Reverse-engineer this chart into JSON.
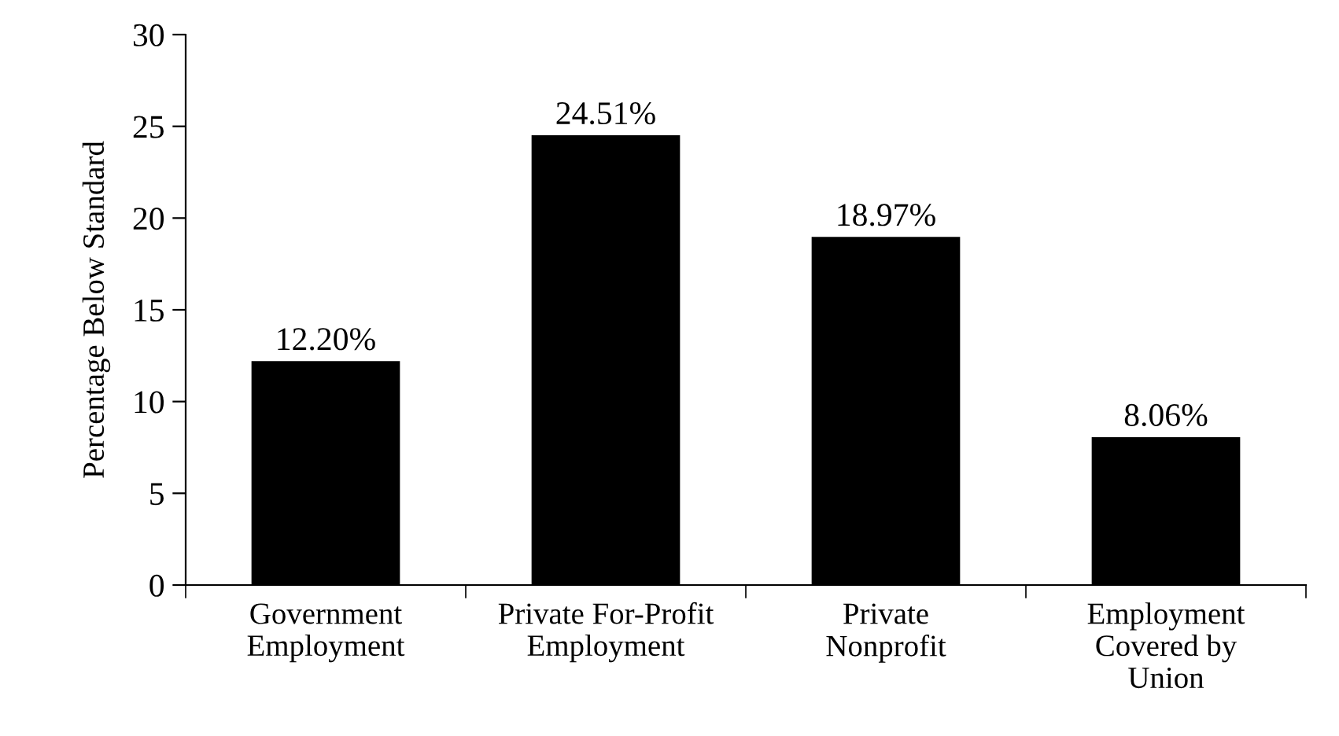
{
  "chart_data": {
    "type": "bar",
    "ylabel": "Percentage Below Standard",
    "categories": [
      "Government\nEmployment",
      "Private For-Profit\nEmployment",
      "Private\nNonprofit",
      "Employment\nCovered by\nUnion"
    ],
    "values": [
      12.2,
      24.51,
      18.97,
      8.06
    ],
    "value_labels": [
      "12.20%",
      "24.51%",
      "18.97%",
      "8.06%"
    ],
    "color": "#000000",
    "ylim": [
      0,
      30
    ],
    "yticks": [
      0,
      5,
      10,
      15,
      20,
      25,
      30
    ],
    "grid": false
  }
}
